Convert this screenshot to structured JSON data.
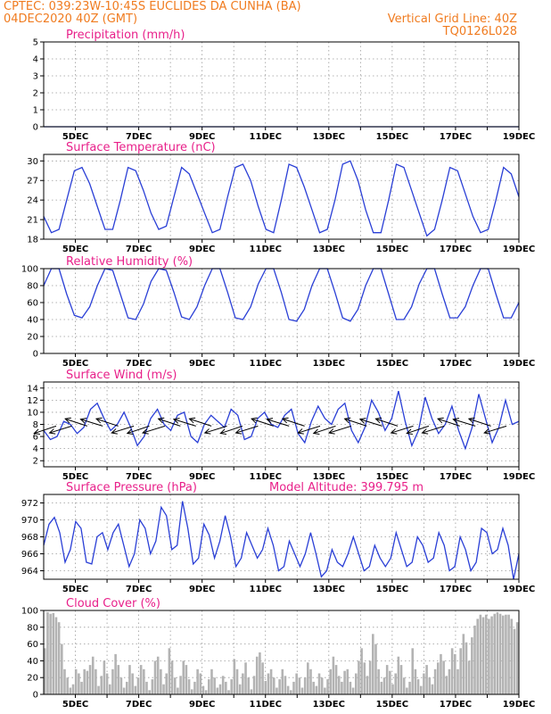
{
  "header": {
    "line1": "CPTEC:   039:23W-10:45S   EUCLIDES DA CUNHA (BA)",
    "line2_left": "04DEC2020 40Z (GMT)",
    "line2_right": "Vertical Grid Line: 40Z",
    "line3_right": "TQ0126L028"
  },
  "colors": {
    "header": "#f07b1f",
    "panel_title": "#e8208a",
    "series": "#2a3fd6",
    "bars": "#b3b3b3",
    "grid": "#9a9a9a"
  },
  "chart_data": [
    {
      "type": "line",
      "title": "Precipitation (mm/h)",
      "x_labels": [
        "5DEC",
        "7DEC",
        "9DEC",
        "11DEC",
        "13DEC",
        "15DEC",
        "17DEC",
        "19DEC"
      ],
      "x_range_days": [
        4.0,
        19.0
      ],
      "ylim": [
        0,
        5
      ],
      "yticks": [
        "0",
        "1",
        "2",
        "3",
        "4",
        "5"
      ],
      "series": [
        {
          "values": [
            0,
            0,
            0,
            0,
            0,
            0,
            0,
            0,
            0,
            0,
            0,
            0,
            0,
            0,
            0,
            0,
            0,
            0,
            0,
            0,
            0,
            0,
            0,
            0,
            0,
            0,
            0,
            0,
            0,
            0,
            0,
            0,
            0,
            0,
            0,
            0,
            0,
            0,
            0,
            0,
            0,
            0,
            0,
            0,
            0,
            0,
            0,
            0,
            0,
            0,
            0,
            0,
            0,
            0,
            0,
            0,
            0,
            0,
            0,
            0,
            0
          ]
        }
      ]
    },
    {
      "type": "line",
      "title": "Surface Temperature (nC)",
      "x_labels": [
        "5DEC",
        "7DEC",
        "9DEC",
        "11DEC",
        "13DEC",
        "15DEC",
        "17DEC",
        "19DEC"
      ],
      "x_range_days": [
        4.0,
        19.0
      ],
      "ylim": [
        18,
        31
      ],
      "yticks": [
        "18",
        "21",
        "24",
        "27",
        "30"
      ],
      "series": [
        {
          "values": [
            21.5,
            19.0,
            19.5,
            24.0,
            28.5,
            29.0,
            26.5,
            23.0,
            19.5,
            19.5,
            24.0,
            29.0,
            28.5,
            25.5,
            22.0,
            19.5,
            20.0,
            24.5,
            29.0,
            28.0,
            25.0,
            22.0,
            19.0,
            19.5,
            24.5,
            29.0,
            29.5,
            27.0,
            23.0,
            19.5,
            19.0,
            24.0,
            29.5,
            29.0,
            26.0,
            22.5,
            19.0,
            19.5,
            24.0,
            29.5,
            30.0,
            27.0,
            22.5,
            19.0,
            19.0,
            24.0,
            29.5,
            29.0,
            25.5,
            22.0,
            18.5,
            19.5,
            24.0,
            29.0,
            28.5,
            25.0,
            21.5,
            19.0,
            19.5,
            24.0,
            29.0,
            28.0,
            24.5
          ]
        }
      ]
    },
    {
      "type": "line",
      "title": "Relative Humidity (%)",
      "x_labels": [
        "5DEC",
        "7DEC",
        "9DEC",
        "11DEC",
        "13DEC",
        "15DEC",
        "17DEC",
        "19DEC"
      ],
      "x_range_days": [
        4.0,
        19.0
      ],
      "ylim": [
        0,
        100
      ],
      "yticks": [
        "0",
        "20",
        "40",
        "60",
        "80",
        "100"
      ],
      "series": [
        {
          "values": [
            80,
            100,
            100,
            70,
            45,
            42,
            55,
            80,
            100,
            98,
            70,
            42,
            40,
            58,
            85,
            100,
            98,
            72,
            43,
            40,
            55,
            80,
            100,
            100,
            72,
            42,
            40,
            55,
            82,
            100,
            100,
            72,
            40,
            38,
            52,
            80,
            100,
            100,
            72,
            42,
            38,
            52,
            80,
            100,
            100,
            70,
            40,
            40,
            55,
            82,
            100,
            100,
            70,
            42,
            42,
            55,
            80,
            100,
            100,
            70,
            42,
            42,
            60
          ]
        }
      ]
    },
    {
      "type": "line",
      "title": "Surface Wind (m/s)",
      "x_labels": [
        "5DEC",
        "7DEC",
        "9DEC",
        "11DEC",
        "13DEC",
        "15DEC",
        "17DEC",
        "19DEC"
      ],
      "x_range_days": [
        4.0,
        19.0
      ],
      "ylim": [
        1,
        15
      ],
      "yticks": [
        "2",
        "4",
        "6",
        "8",
        "10",
        "12",
        "14"
      ],
      "series": [
        {
          "values": [
            7.0,
            5.5,
            6.0,
            8.5,
            8.0,
            6.5,
            7.5,
            10.5,
            11.5,
            9.0,
            7.0,
            8.0,
            10.0,
            7.5,
            4.5,
            6.0,
            9.0,
            10.5,
            8.0,
            7.0,
            9.5,
            10.0,
            6.0,
            5.0,
            8.0,
            9.5,
            8.5,
            7.5,
            10.5,
            9.5,
            5.5,
            6.0,
            9.0,
            10.0,
            8.0,
            7.5,
            9.5,
            10.5,
            6.5,
            5.0,
            8.5,
            11.0,
            9.0,
            8.0,
            10.5,
            11.5,
            7.0,
            5.0,
            7.5,
            12.0,
            10.0,
            7.0,
            9.0,
            13.5,
            8.5,
            4.5,
            7.0,
            12.5,
            9.0,
            6.5,
            8.0,
            11.0,
            7.0,
            4.0,
            7.5,
            13.0,
            9.0,
            5.0,
            7.5,
            12.0,
            8.0,
            8.5
          ]
        }
      ],
      "wind_vectors": {
        "count": 30,
        "style": "arrows"
      }
    },
    {
      "type": "line",
      "title": "Surface Pressure (hPa)",
      "annotation": "Model Altitude: 399.795 m",
      "x_labels": [
        "5DEC",
        "7DEC",
        "9DEC",
        "11DEC",
        "13DEC",
        "15DEC",
        "17DEC",
        "19DEC"
      ],
      "x_range_days": [
        4.0,
        19.0
      ],
      "ylim": [
        963,
        973
      ],
      "yticks": [
        "964",
        "966",
        "968",
        "970",
        "972"
      ],
      "series": [
        {
          "values": [
            967.0,
            969.5,
            970.3,
            968.5,
            965.0,
            966.5,
            969.8,
            969.0,
            965.0,
            964.8,
            968.0,
            968.5,
            966.5,
            968.5,
            969.5,
            967.0,
            964.5,
            966.0,
            970.0,
            969.0,
            966.0,
            967.5,
            971.5,
            970.5,
            966.5,
            967.0,
            972.2,
            969.0,
            964.8,
            965.5,
            969.5,
            968.2,
            965.5,
            967.5,
            970.5,
            968.0,
            964.5,
            965.5,
            968.5,
            967.0,
            965.5,
            966.5,
            969.0,
            967.0,
            964.0,
            964.5,
            967.5,
            966.0,
            964.5,
            966.0,
            968.5,
            966.0,
            963.3,
            964.0,
            966.5,
            965.0,
            964.5,
            966.0,
            968.0,
            966.0,
            964.0,
            964.5,
            967.0,
            965.5,
            964.5,
            965.5,
            968.5,
            966.5,
            964.5,
            965.0,
            968.0,
            967.0,
            965.0,
            965.5,
            968.5,
            967.0,
            964.0,
            964.5,
            968.0,
            966.5,
            964.0,
            965.0,
            969.0,
            968.5,
            966.0,
            966.5,
            969.0,
            967.0,
            963.0,
            966.0
          ]
        }
      ]
    },
    {
      "type": "bar",
      "title": "Cloud Cover (%)",
      "x_labels": [
        "5DEC",
        "7DEC",
        "9DEC",
        "11DEC",
        "13DEC",
        "15DEC",
        "17DEC",
        "19DEC"
      ],
      "x_range_days": [
        4.0,
        19.0
      ],
      "ylim": [
        0,
        100
      ],
      "yticks": [
        "0",
        "20",
        "40",
        "60",
        "80",
        "100"
      ],
      "series": [
        {
          "values": [
            55,
            98,
            96,
            97,
            92,
            86,
            60,
            30,
            20,
            8,
            12,
            30,
            25,
            15,
            30,
            28,
            35,
            45,
            30,
            10,
            22,
            40,
            25,
            12,
            30,
            48,
            35,
            20,
            8,
            15,
            35,
            25,
            10,
            20,
            35,
            30,
            15,
            5,
            18,
            40,
            45,
            30,
            12,
            25,
            55,
            40,
            20,
            8,
            22,
            40,
            35,
            18,
            6,
            15,
            30,
            25,
            10,
            5,
            18,
            30,
            20,
            8,
            12,
            22,
            15,
            5,
            18,
            42,
            30,
            12,
            25,
            38,
            20,
            6,
            22,
            45,
            50,
            38,
            16,
            25,
            30,
            20,
            8,
            18,
            30,
            22,
            10,
            5,
            15,
            25,
            20,
            8,
            20,
            38,
            30,
            15,
            10,
            25,
            20,
            8,
            18,
            30,
            45,
            35,
            22,
            15,
            28,
            30,
            15,
            8,
            25,
            40,
            55,
            38,
            22,
            40,
            72,
            60,
            30,
            15,
            20,
            35,
            28,
            12,
            25,
            45,
            35,
            20,
            8,
            15,
            55,
            30,
            18,
            10,
            25,
            35,
            20,
            12,
            30,
            38,
            48,
            40,
            22,
            30,
            55,
            48,
            30,
            55,
            72,
            62,
            40,
            68,
            82,
            90,
            95,
            92,
            95,
            90,
            93,
            96,
            98,
            96,
            94,
            95,
            95,
            90,
            78,
            86
          ]
        }
      ]
    }
  ]
}
